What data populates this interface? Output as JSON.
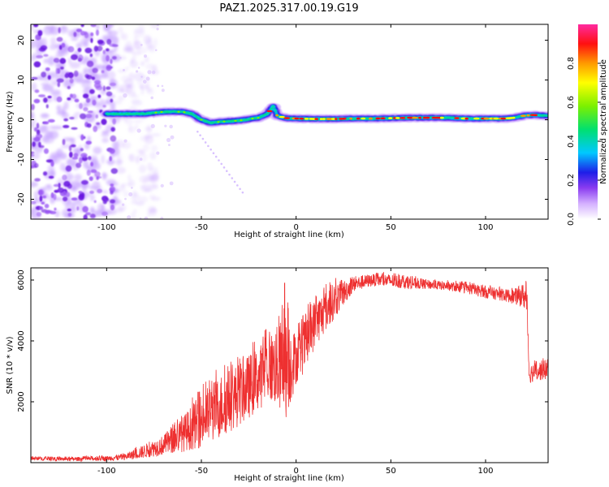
{
  "title": "PAZ1.2025.317.00.19.G19",
  "chart_data": [
    {
      "type": "heatmap",
      "id": "spectrogram",
      "xlabel": "Height of straight line (km)",
      "ylabel": "Frequency (Hz)",
      "xlim": [
        -140,
        133
      ],
      "ylim": [
        -25,
        24
      ],
      "xticks": [
        -100,
        -50,
        0,
        50,
        100
      ],
      "yticks": [
        -20,
        -10,
        0,
        10,
        20
      ],
      "xtick_labels": [
        "-100",
        "-50",
        "0",
        "50",
        "100"
      ],
      "ytick_labels": [
        "-20",
        "-10",
        "0",
        "10",
        "20"
      ],
      "ridge": {
        "x": [
          -100,
          -90,
          -80,
          -70,
          -60,
          -55,
          -50,
          -45,
          -40,
          -30,
          -20,
          -15,
          -12,
          -10,
          -5,
          0,
          10,
          20,
          30,
          40,
          50,
          60,
          70,
          80,
          90,
          100,
          110,
          115,
          120,
          125,
          133
        ],
        "freq": [
          1.5,
          1.5,
          1.5,
          2.0,
          2.0,
          1.5,
          0.0,
          -0.8,
          -0.5,
          -0.2,
          0.5,
          1.5,
          3.5,
          1.0,
          0.4,
          0.3,
          0.2,
          0.2,
          0.3,
          0.3,
          0.4,
          0.5,
          0.5,
          0.5,
          0.3,
          0.3,
          0.3,
          0.5,
          1.0,
          1.2,
          1.0
        ]
      },
      "noise_region_x": [
        -140,
        -95
      ],
      "colorbar": {
        "label": "Normalized spectral amplitude",
        "range": [
          0,
          1
        ],
        "ticks": [
          0.0,
          0.2,
          0.4,
          0.6,
          0.8
        ],
        "tick_labels": [
          "0.0",
          "0.2",
          "0.4",
          "0.6",
          "0.8"
        ],
        "colors": [
          "#ffffff",
          "#d4b0ff",
          "#8a3cf0",
          "#1e1ee8",
          "#00c8ff",
          "#00e070",
          "#7cf000",
          "#ffff00",
          "#ff9a00",
          "#ff1010",
          "#ff2aa0"
        ]
      }
    },
    {
      "type": "line",
      "id": "snr",
      "xlabel": "Height of straight line (km)",
      "ylabel": "SNR (10 * v/v)",
      "xlim": [
        -140,
        133
      ],
      "ylim": [
        0,
        6400
      ],
      "xticks": [
        -100,
        -50,
        0,
        50,
        100
      ],
      "yticks": [
        2000,
        4000,
        6000
      ],
      "xtick_labels": [
        "-100",
        "-50",
        "0",
        "50",
        "100"
      ],
      "ytick_labels": [
        "2000",
        "4000",
        "6000"
      ],
      "color": "#ee3030",
      "series_envelope": {
        "x": [
          -140,
          -120,
          -100,
          -90,
          -80,
          -70,
          -60,
          -50,
          -40,
          -30,
          -20,
          -15,
          -10,
          -5,
          0,
          5,
          10,
          20,
          30,
          40,
          50,
          60,
          70,
          80,
          90,
          100,
          110,
          115,
          120,
          122,
          123,
          125,
          133
        ],
        "low": [
          80,
          50,
          60,
          80,
          150,
          250,
          350,
          500,
          800,
          1200,
          1700,
          2000,
          1800,
          1400,
          2600,
          3000,
          3800,
          4700,
          5600,
          5800,
          5750,
          5700,
          5700,
          5650,
          5550,
          5400,
          5300,
          5200,
          5100,
          4700,
          2600,
          2650,
          2750
        ],
        "high": [
          200,
          180,
          220,
          300,
          600,
          900,
          1500,
          2300,
          2900,
          3300,
          3800,
          4200,
          4500,
          5000,
          4200,
          4800,
          5400,
          5900,
          6100,
          6200,
          6200,
          6100,
          6000,
          5950,
          5900,
          5800,
          5700,
          5700,
          5900,
          5800,
          3200,
          3300,
          3400
        ]
      },
      "spike": {
        "x": -6,
        "y": 5900
      }
    }
  ]
}
